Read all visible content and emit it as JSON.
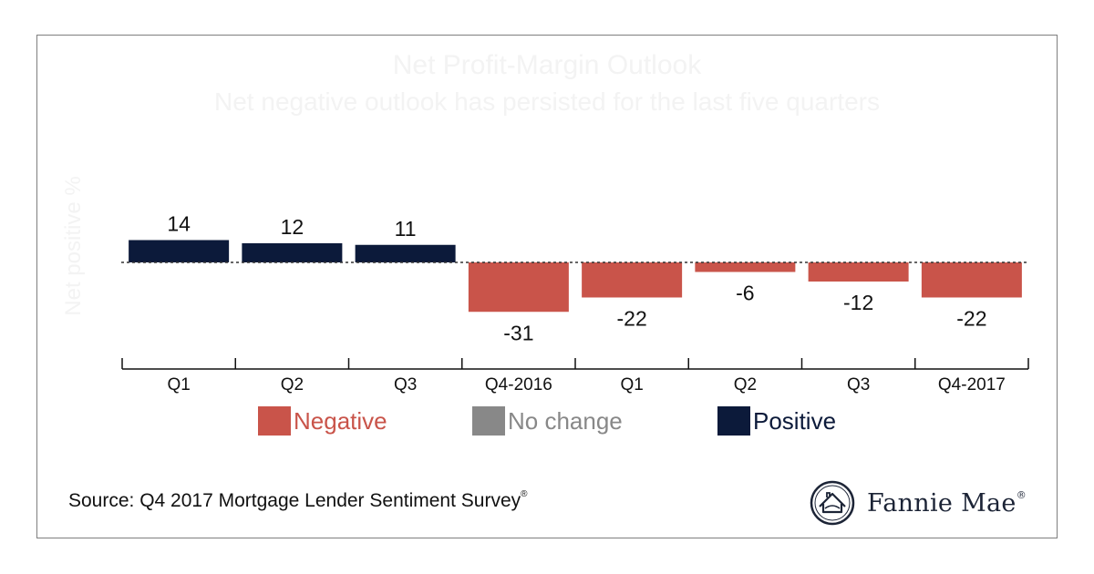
{
  "chart_data": {
    "type": "bar",
    "title": "Net Profit-Margin Outlook",
    "subtitle": "Net negative outlook has persisted for the last five quarters",
    "ylabel": "Net positive %",
    "categories": [
      "Q1",
      "Q2",
      "Q3",
      "Q4-2016",
      "Q1",
      "Q2",
      "Q3",
      "Q4-2017"
    ],
    "values": [
      14,
      12,
      11,
      -31,
      -22,
      -6,
      -12,
      -22
    ],
    "data_labels": [
      "14",
      "12",
      "11",
      "-31",
      "-22",
      "-6",
      "-12",
      "-22"
    ],
    "ylim": [
      -40,
      25
    ],
    "grid": false,
    "zero_line": "dotted",
    "legend": {
      "placement": "bottom",
      "items": [
        {
          "label": "Negative",
          "color": "#c9544a"
        },
        {
          "label": "No change",
          "color": "#888888"
        },
        {
          "label": "Positive",
          "color": "#0c1a3a"
        }
      ]
    }
  },
  "colors": {
    "negative": "#c9544a",
    "no_change": "#888888",
    "positive": "#0c1a3a"
  },
  "footer": {
    "source": "Source: Q4 2017 Mortgage Lender Sentiment Survey",
    "source_mark": "®",
    "brand": "Fannie Mae",
    "brand_mark": "®",
    "brand_icon": "fannie-mae-logo-icon"
  }
}
